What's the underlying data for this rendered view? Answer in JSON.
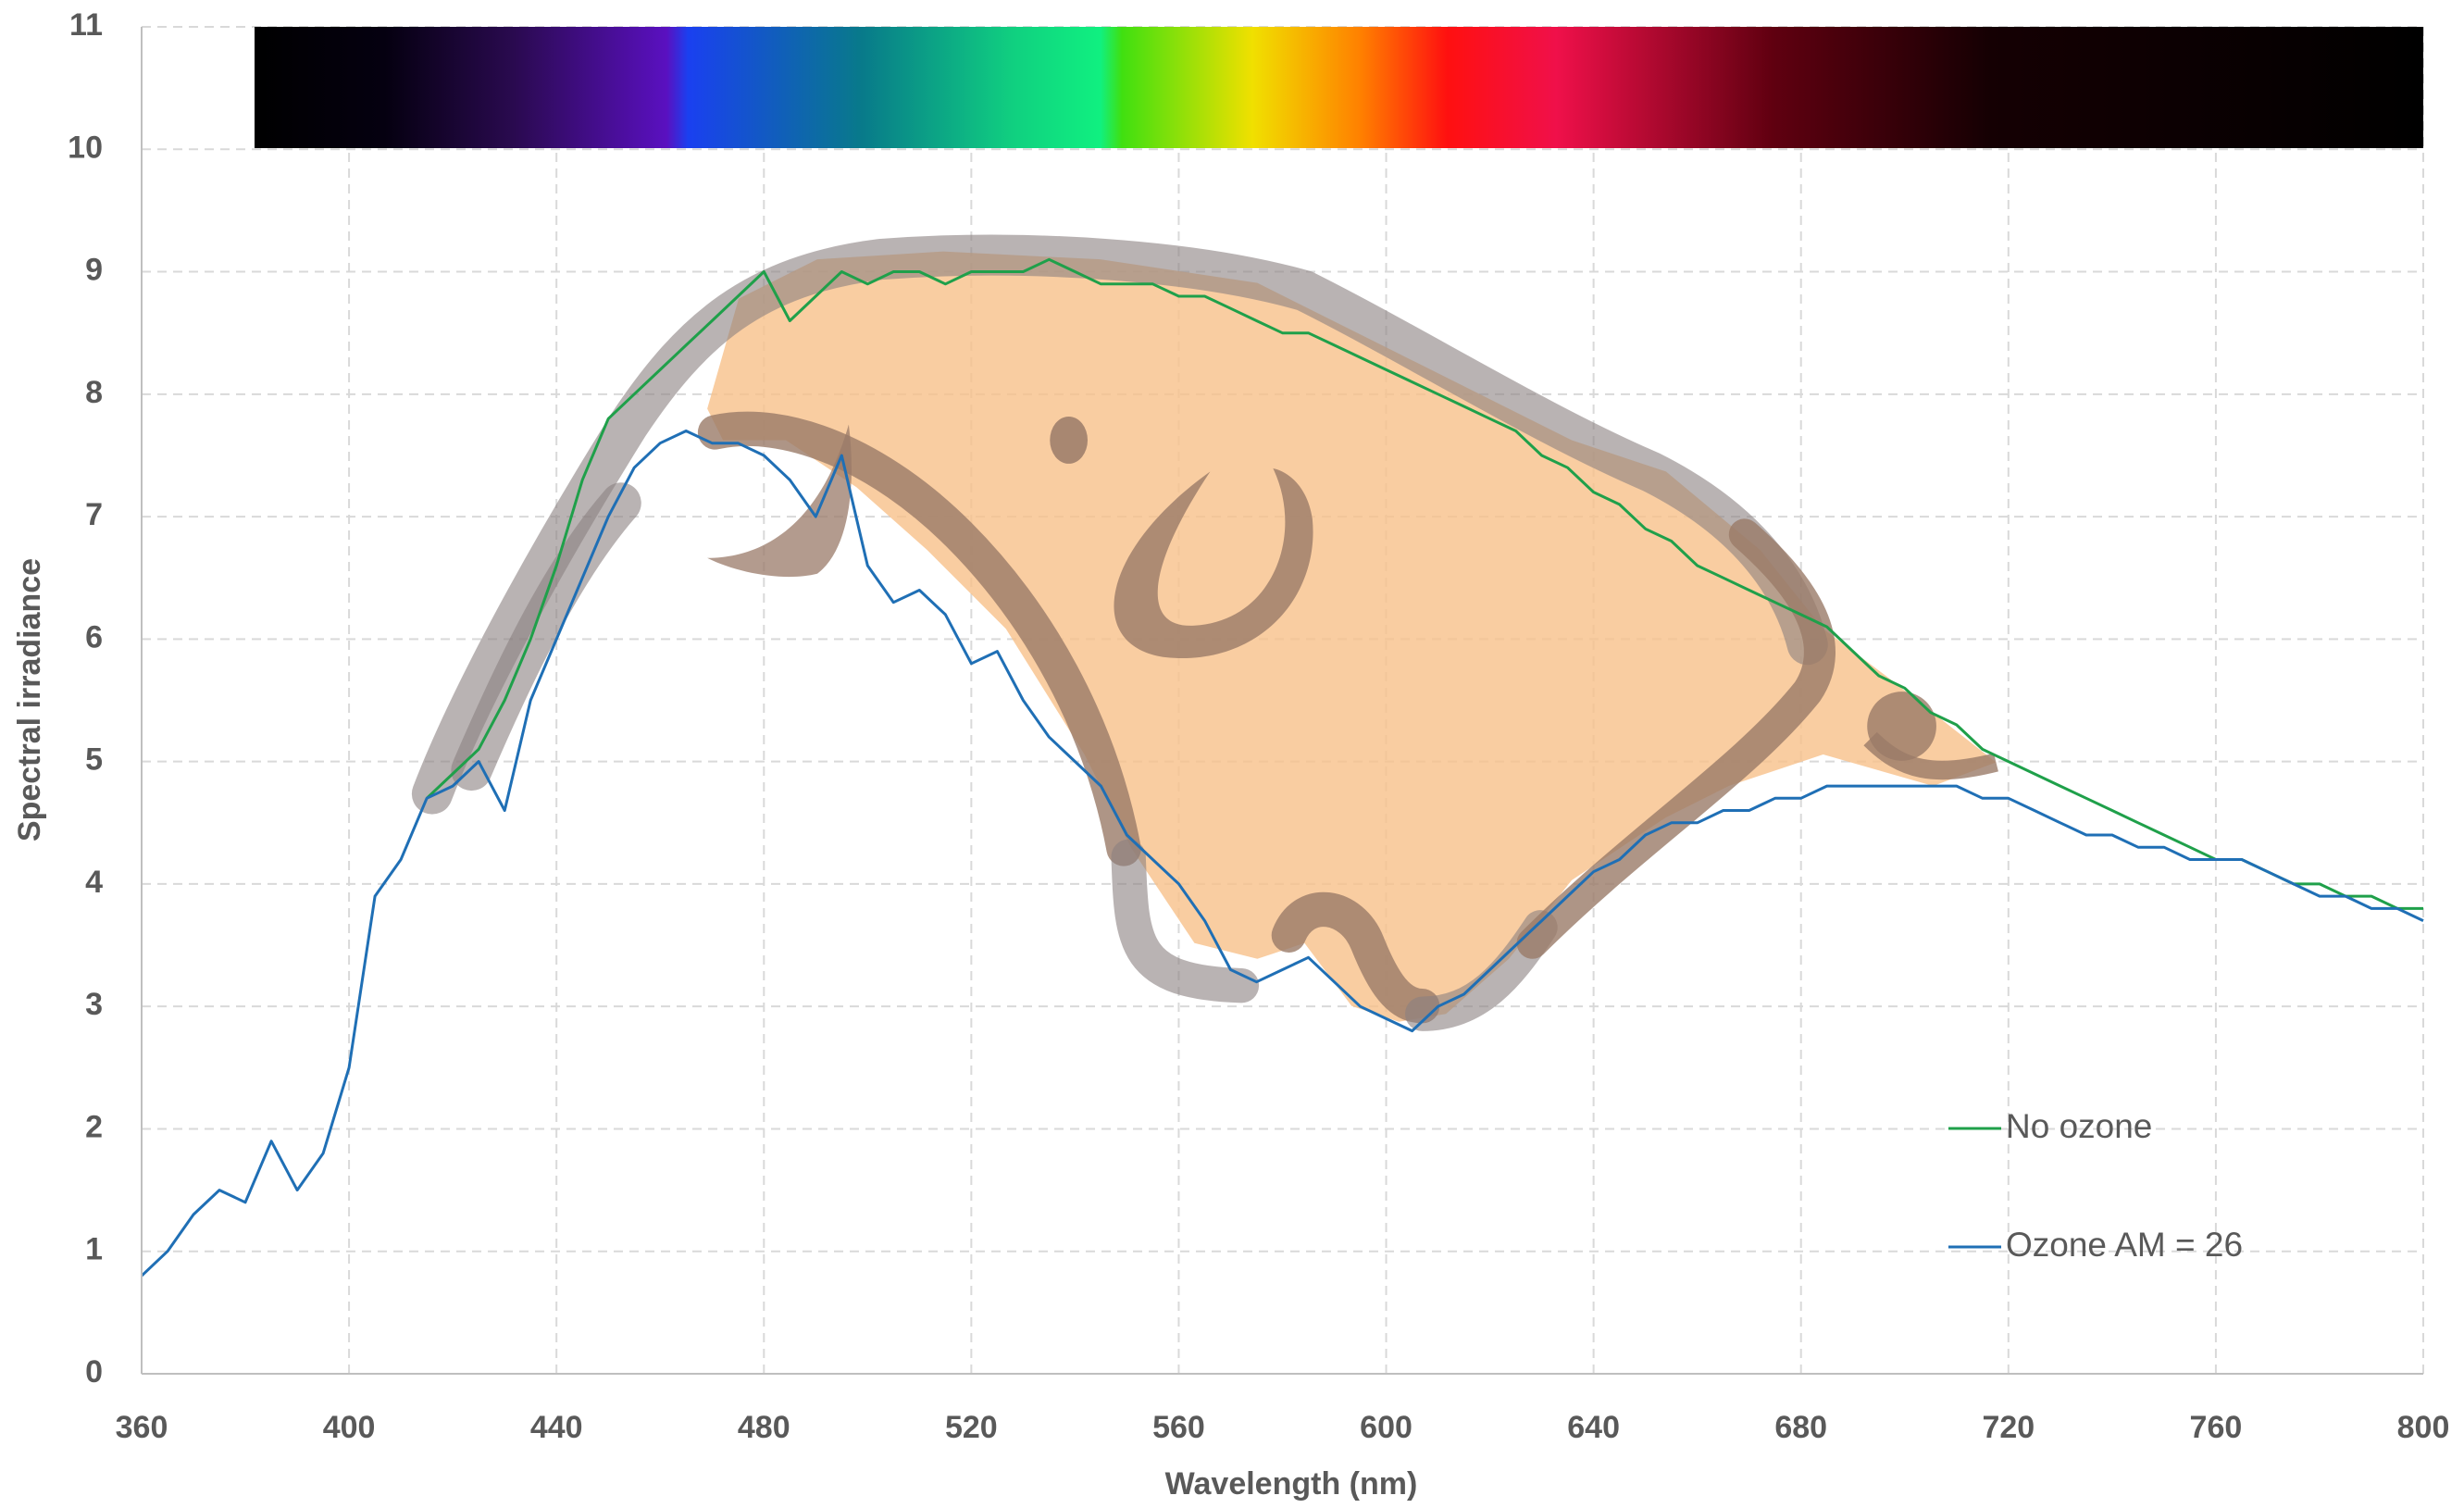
{
  "chart_data": {
    "type": "line",
    "xlabel": "Wavelength (nm)",
    "ylabel": "Spectral irradiance",
    "x": [
      360,
      365,
      370,
      375,
      380,
      385,
      390,
      395,
      400,
      405,
      410,
      415,
      420,
      425,
      430,
      435,
      440,
      445,
      450,
      455,
      460,
      465,
      470,
      475,
      480,
      485,
      490,
      495,
      500,
      505,
      510,
      515,
      520,
      525,
      530,
      535,
      540,
      545,
      550,
      555,
      560,
      565,
      570,
      575,
      580,
      585,
      590,
      595,
      600,
      605,
      610,
      615,
      620,
      625,
      630,
      635,
      640,
      645,
      650,
      655,
      660,
      665,
      670,
      675,
      680,
      685,
      690,
      695,
      700,
      705,
      710,
      715,
      720,
      725,
      730,
      735,
      740,
      745,
      750,
      755,
      760,
      765,
      770,
      775,
      780,
      785,
      790,
      795,
      800
    ],
    "series": [
      {
        "name": "No ozone",
        "color": "#1fa04a",
        "values": [
          null,
          null,
          null,
          null,
          null,
          null,
          null,
          null,
          null,
          null,
          null,
          4.7,
          4.9,
          5.1,
          5.5,
          6.0,
          6.6,
          7.3,
          7.8,
          8.0,
          8.2,
          8.4,
          8.6,
          8.8,
          9.0,
          8.6,
          8.8,
          9.0,
          8.9,
          9.0,
          9.0,
          8.9,
          9.0,
          9.0,
          9.0,
          9.1,
          9.0,
          8.9,
          8.9,
          8.9,
          8.8,
          8.8,
          8.7,
          8.6,
          8.5,
          8.5,
          8.4,
          8.3,
          8.2,
          8.1,
          8.0,
          7.9,
          7.8,
          7.7,
          7.5,
          7.4,
          7.2,
          7.1,
          6.9,
          6.8,
          6.6,
          6.5,
          6.4,
          6.3,
          6.2,
          6.1,
          5.9,
          5.7,
          5.6,
          5.4,
          5.3,
          5.1,
          5.0,
          4.9,
          4.8,
          4.7,
          4.6,
          4.5,
          4.4,
          4.3,
          4.2,
          4.2,
          4.1,
          4.0,
          4.0,
          3.9,
          3.9,
          3.8,
          3.8
        ]
      },
      {
        "name": "Ozone AM = 26",
        "color": "#1f6fb5",
        "values": [
          0.8,
          1.0,
          1.3,
          1.5,
          1.4,
          1.9,
          1.5,
          1.8,
          2.5,
          3.9,
          4.2,
          4.7,
          4.8,
          5.0,
          4.6,
          5.5,
          6.0,
          6.5,
          7.0,
          7.4,
          7.6,
          7.7,
          7.6,
          7.6,
          7.5,
          7.3,
          7.0,
          7.5,
          6.6,
          6.3,
          6.4,
          6.2,
          5.8,
          5.9,
          5.5,
          5.2,
          5.0,
          4.8,
          4.4,
          4.2,
          4.0,
          3.7,
          3.3,
          3.2,
          3.3,
          3.4,
          3.2,
          3.0,
          2.9,
          2.8,
          3.0,
          3.1,
          3.3,
          3.5,
          3.7,
          3.9,
          4.1,
          4.2,
          4.4,
          4.5,
          4.5,
          4.6,
          4.6,
          4.7,
          4.7,
          4.8,
          4.8,
          4.8,
          4.8,
          4.8,
          4.8,
          4.7,
          4.7,
          4.6,
          4.5,
          4.4,
          4.4,
          4.3,
          4.3,
          4.2,
          4.2,
          4.2,
          4.1,
          4.0,
          3.9,
          3.9,
          3.8,
          3.8,
          3.7
        ]
      }
    ],
    "xlim": [
      360,
      800
    ],
    "xticks": [
      360,
      400,
      440,
      480,
      520,
      560,
      600,
      640,
      680,
      720,
      760,
      800
    ],
    "ylim": [
      0,
      11
    ],
    "yticks": [
      0,
      1,
      2,
      3,
      4,
      5,
      6,
      7,
      8,
      9,
      10,
      11
    ],
    "grid": true
  }
}
